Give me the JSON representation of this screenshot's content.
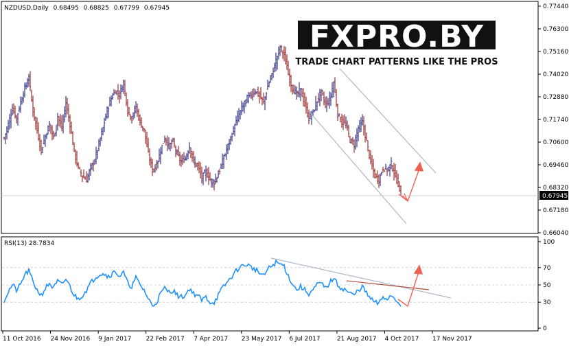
{
  "chart_data": [
    {
      "type": "ohlc",
      "title": "NZDUSD,Daily",
      "ohlc_readout": [
        "0.68495",
        "0.68825",
        "0.67799",
        "0.67945"
      ],
      "current_price_label": "0.67945",
      "ylim": [
        0.6604,
        0.7744
      ],
      "y_ticks": [
        "0.77440",
        "0.76300",
        "0.75160",
        "0.74020",
        "0.72880",
        "0.71740",
        "0.70600",
        "0.69460",
        "0.68320",
        "0.67180",
        "0.66040"
      ],
      "x_ticks": [
        "11 Oct 2016",
        "24 Nov 2016",
        "9 Jan 2017",
        "22 Feb 2017",
        "7 Apr 2017",
        "23 May 2017",
        "6 Jul 2017",
        "21 Aug 2017",
        "4 Oct 2017",
        "17 Nov 2017"
      ],
      "close_path": [
        [
          0,
          0.708
        ],
        [
          3,
          0.715
        ],
        [
          6,
          0.723
        ],
        [
          9,
          0.718
        ],
        [
          12,
          0.726
        ],
        [
          15,
          0.733
        ],
        [
          18,
          0.738
        ],
        [
          21,
          0.722
        ],
        [
          24,
          0.712
        ],
        [
          27,
          0.702
        ],
        [
          30,
          0.709
        ],
        [
          33,
          0.715
        ],
        [
          36,
          0.708
        ],
        [
          39,
          0.719
        ],
        [
          42,
          0.713
        ],
        [
          45,
          0.726
        ],
        [
          48,
          0.715
        ],
        [
          51,
          0.701
        ],
        [
          54,
          0.693
        ],
        [
          57,
          0.689
        ],
        [
          60,
          0.687
        ],
        [
          63,
          0.693
        ],
        [
          66,
          0.697
        ],
        [
          69,
          0.705
        ],
        [
          72,
          0.713
        ],
        [
          75,
          0.722
        ],
        [
          78,
          0.728
        ],
        [
          81,
          0.732
        ],
        [
          84,
          0.73
        ],
        [
          87,
          0.736
        ],
        [
          90,
          0.722
        ],
        [
          93,
          0.718
        ],
        [
          96,
          0.724
        ],
        [
          99,
          0.716
        ],
        [
          102,
          0.712
        ],
        [
          105,
          0.7
        ],
        [
          108,
          0.692
        ],
        [
          111,
          0.694
        ],
        [
          114,
          0.702
        ],
        [
          117,
          0.708
        ],
        [
          120,
          0.704
        ],
        [
          123,
          0.706
        ],
        [
          126,
          0.7
        ],
        [
          129,
          0.696
        ],
        [
          132,
          0.698
        ],
        [
          135,
          0.704
        ],
        [
          138,
          0.696
        ],
        [
          141,
          0.694
        ],
        [
          144,
          0.688
        ],
        [
          147,
          0.691
        ],
        [
          150,
          0.687
        ],
        [
          153,
          0.686
        ],
        [
          156,
          0.69
        ],
        [
          159,
          0.696
        ],
        [
          162,
          0.702
        ],
        [
          165,
          0.708
        ],
        [
          168,
          0.714
        ],
        [
          171,
          0.72
        ],
        [
          174,
          0.724
        ],
        [
          177,
          0.728
        ],
        [
          180,
          0.73
        ],
        [
          183,
          0.732
        ],
        [
          186,
          0.729
        ],
        [
          189,
          0.726
        ],
        [
          192,
          0.734
        ],
        [
          195,
          0.74
        ],
        [
          198,
          0.747
        ],
        [
          201,
          0.754
        ],
        [
          204,
          0.75
        ],
        [
          207,
          0.74
        ],
        [
          210,
          0.733
        ],
        [
          213,
          0.73
        ],
        [
          216,
          0.732
        ],
        [
          219,
          0.725
        ],
        [
          222,
          0.718
        ],
        [
          225,
          0.721
        ],
        [
          228,
          0.727
        ],
        [
          231,
          0.731
        ],
        [
          234,
          0.725
        ],
        [
          237,
          0.727
        ],
        [
          240,
          0.736
        ],
        [
          243,
          0.72
        ],
        [
          246,
          0.716
        ],
        [
          249,
          0.715
        ],
        [
          252,
          0.707
        ],
        [
          255,
          0.705
        ],
        [
          258,
          0.713
        ],
        [
          261,
          0.716
        ],
        [
          264,
          0.706
        ],
        [
          267,
          0.696
        ],
        [
          270,
          0.689
        ],
        [
          273,
          0.687
        ],
        [
          276,
          0.693
        ],
        [
          279,
          0.692
        ],
        [
          282,
          0.695
        ],
        [
          285,
          0.689
        ],
        [
          287,
          0.685
        ],
        [
          289,
          0.68
        ]
      ]
    },
    {
      "type": "line",
      "title": "RSI(13) 28.7834",
      "ylim": [
        0,
        100
      ],
      "y_ticks": [
        "100",
        "70",
        "50",
        "30",
        "0"
      ],
      "levels": [
        70,
        50,
        30
      ],
      "path": [
        [
          0,
          32
        ],
        [
          3,
          42
        ],
        [
          6,
          50
        ],
        [
          9,
          44
        ],
        [
          12,
          50
        ],
        [
          15,
          62
        ],
        [
          18,
          66
        ],
        [
          21,
          54
        ],
        [
          24,
          44
        ],
        [
          27,
          38
        ],
        [
          30,
          46
        ],
        [
          33,
          52
        ],
        [
          36,
          46
        ],
        [
          39,
          54
        ],
        [
          42,
          50
        ],
        [
          45,
          57
        ],
        [
          48,
          48
        ],
        [
          51,
          38
        ],
        [
          54,
          34
        ],
        [
          57,
          38
        ],
        [
          60,
          44
        ],
        [
          63,
          52
        ],
        [
          66,
          58
        ],
        [
          69,
          62
        ],
        [
          72,
          64
        ],
        [
          75,
          60
        ],
        [
          78,
          62
        ],
        [
          81,
          66
        ],
        [
          84,
          60
        ],
        [
          87,
          64
        ],
        [
          90,
          52
        ],
        [
          93,
          48
        ],
        [
          96,
          58
        ],
        [
          99,
          50
        ],
        [
          102,
          44
        ],
        [
          105,
          34
        ],
        [
          108,
          26
        ],
        [
          111,
          30
        ],
        [
          114,
          40
        ],
        [
          117,
          46
        ],
        [
          120,
          42
        ],
        [
          123,
          44
        ],
        [
          126,
          38
        ],
        [
          129,
          36
        ],
        [
          132,
          38
        ],
        [
          135,
          46
        ],
        [
          138,
          40
        ],
        [
          141,
          38
        ],
        [
          144,
          32
        ],
        [
          147,
          36
        ],
        [
          150,
          30
        ],
        [
          153,
          30
        ],
        [
          156,
          38
        ],
        [
          159,
          46
        ],
        [
          162,
          52
        ],
        [
          165,
          58
        ],
        [
          168,
          64
        ],
        [
          171,
          70
        ],
        [
          174,
          72
        ],
        [
          177,
          74
        ],
        [
          180,
          70
        ],
        [
          183,
          68
        ],
        [
          186,
          64
        ],
        [
          189,
          60
        ],
        [
          192,
          68
        ],
        [
          195,
          72
        ],
        [
          198,
          76
        ],
        [
          201,
          74
        ],
        [
          204,
          72
        ],
        [
          207,
          60
        ],
        [
          210,
          52
        ],
        [
          213,
          44
        ],
        [
          216,
          48
        ],
        [
          219,
          44
        ],
        [
          222,
          40
        ],
        [
          225,
          44
        ],
        [
          228,
          50
        ],
        [
          231,
          52
        ],
        [
          234,
          46
        ],
        [
          237,
          52
        ],
        [
          240,
          58
        ],
        [
          243,
          50
        ],
        [
          246,
          46
        ],
        [
          249,
          44
        ],
        [
          252,
          40
        ],
        [
          255,
          38
        ],
        [
          258,
          44
        ],
        [
          261,
          48
        ],
        [
          264,
          40
        ],
        [
          267,
          34
        ],
        [
          270,
          30
        ],
        [
          273,
          28
        ],
        [
          276,
          36
        ],
        [
          279,
          34
        ],
        [
          282,
          38
        ],
        [
          285,
          34
        ],
        [
          287,
          30
        ],
        [
          289,
          28
        ]
      ]
    }
  ],
  "branding": {
    "logo_text": "FXPRO.BY",
    "tagline": "TRADE CHART PATTERNS LIKE THE PROS"
  }
}
